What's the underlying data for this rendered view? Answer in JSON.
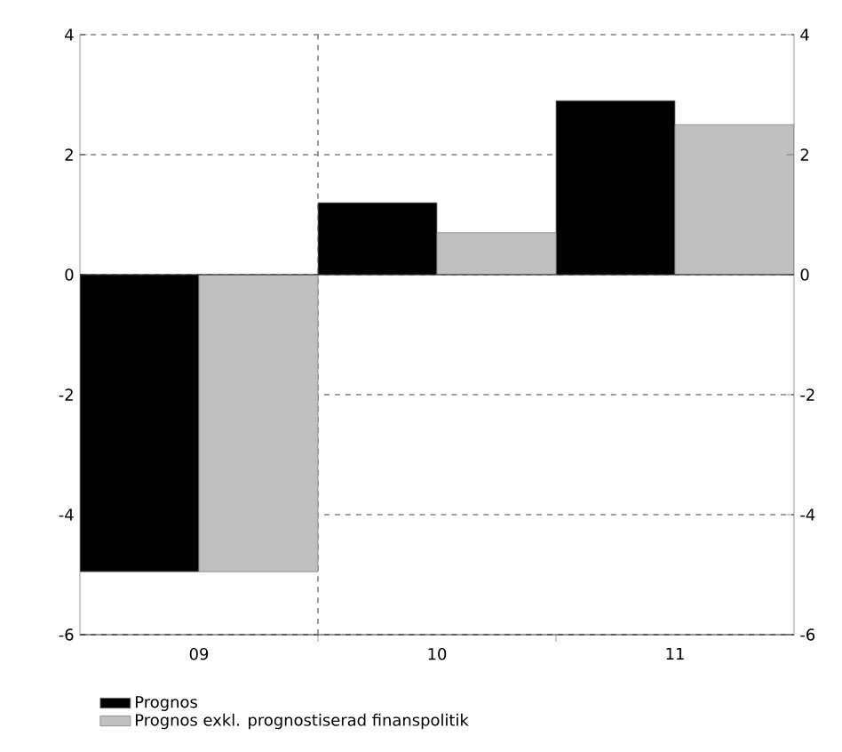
{
  "chart_data": {
    "type": "bar",
    "categories": [
      "09",
      "10",
      "11"
    ],
    "series": [
      {
        "name": "Prognos",
        "color": "#000000",
        "values": [
          -4.95,
          1.2,
          2.9
        ]
      },
      {
        "name": "Prognos exkl. prognostiserad finanspolitik",
        "color": "#c0c0c0",
        "values": [
          -4.95,
          0.7,
          2.5
        ]
      }
    ],
    "ylim": [
      -6,
      4
    ],
    "yticks": [
      -6,
      -4,
      -2,
      0,
      2,
      4
    ],
    "y2lim": [
      -6,
      4
    ],
    "y2ticks": [
      -6,
      -4,
      -2,
      0,
      2,
      4
    ],
    "grid": "y",
    "legend": "bottom"
  }
}
